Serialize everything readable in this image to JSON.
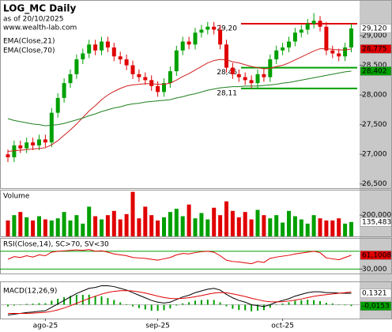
{
  "chart_data": [
    {
      "type": "candlestick",
      "title": "LOG_MC Daily",
      "subtitle": "as of 20/10/2025",
      "source": "www.wealth-lab.com",
      "categories": [
        null,
        null,
        null,
        null,
        null,
        null,
        "ago-25",
        null,
        null,
        null,
        null,
        null,
        null,
        null,
        null,
        null,
        null,
        null,
        null,
        null,
        null,
        null,
        null,
        null,
        "sep-25",
        null,
        null,
        null,
        null,
        null,
        null,
        null,
        null,
        null,
        null,
        null,
        null,
        null,
        null,
        null,
        null,
        null,
        null,
        null,
        "oct-25",
        null,
        null,
        null,
        null,
        null,
        null,
        null,
        null,
        null,
        null,
        null
      ],
      "open": [
        27.0,
        26.95,
        27.15,
        27.1,
        27.2,
        27.15,
        27.25,
        27.2,
        27.7,
        27.95,
        28.2,
        28.35,
        28.6,
        28.7,
        28.85,
        28.75,
        28.9,
        28.8,
        28.65,
        28.6,
        28.5,
        28.35,
        28.3,
        28.25,
        28.15,
        28.05,
        28.2,
        28.4,
        28.75,
        28.9,
        28.85,
        29.05,
        29.1,
        29.15,
        29.1,
        28.85,
        28.46,
        28.35,
        28.3,
        28.25,
        28.2,
        28.35,
        28.3,
        28.6,
        28.75,
        28.8,
        28.9,
        29.05,
        29.1,
        29.2,
        29.25,
        29.15,
        28.75,
        28.7,
        28.65,
        28.8
      ],
      "high": [
        27.08,
        27.23,
        27.23,
        27.28,
        27.28,
        27.33,
        27.33,
        27.78,
        28.03,
        28.28,
        28.43,
        28.68,
        28.78,
        28.93,
        28.93,
        28.98,
        28.98,
        28.88,
        28.73,
        28.68,
        28.58,
        28.43,
        28.38,
        28.33,
        28.23,
        28.28,
        28.48,
        28.83,
        28.98,
        28.98,
        29.13,
        29.18,
        29.23,
        29.23,
        29.18,
        28.93,
        28.54,
        28.43,
        28.38,
        28.33,
        28.43,
        28.43,
        28.68,
        28.83,
        28.88,
        28.98,
        29.13,
        29.18,
        29.28,
        29.38,
        29.33,
        29.23,
        28.83,
        28.78,
        28.88,
        29.2
      ],
      "low": [
        26.87,
        26.87,
        27.02,
        27.02,
        27.07,
        27.07,
        27.12,
        27.12,
        27.62,
        27.87,
        28.12,
        28.27,
        28.52,
        28.62,
        28.67,
        28.67,
        28.72,
        28.57,
        28.52,
        28.42,
        28.27,
        28.22,
        28.17,
        28.07,
        27.97,
        27.97,
        28.12,
        28.32,
        28.67,
        28.77,
        28.77,
        28.97,
        29.02,
        29.02,
        28.77,
        28.38,
        28.27,
        28.22,
        28.17,
        28.11,
        28.12,
        28.22,
        28.22,
        28.52,
        28.67,
        28.72,
        28.82,
        28.97,
        29.02,
        29.12,
        29.07,
        28.67,
        28.62,
        28.57,
        28.57,
        28.72
      ],
      "close": [
        26.95,
        27.15,
        27.1,
        27.2,
        27.15,
        27.25,
        27.2,
        27.7,
        27.95,
        28.2,
        28.35,
        28.6,
        28.7,
        28.85,
        28.75,
        28.9,
        28.8,
        28.65,
        28.6,
        28.5,
        28.35,
        28.3,
        28.25,
        28.15,
        28.05,
        28.2,
        28.4,
        28.75,
        28.9,
        28.85,
        29.05,
        29.1,
        29.15,
        29.1,
        28.85,
        28.46,
        28.35,
        28.3,
        28.25,
        28.2,
        28.35,
        28.3,
        28.6,
        28.75,
        28.8,
        28.9,
        29.05,
        29.1,
        29.2,
        29.25,
        29.15,
        28.75,
        28.7,
        28.65,
        28.8,
        29.12
      ],
      "up_color": "#00a000",
      "down_color": "#e00000",
      "ylim": [
        26.43,
        29.6
      ],
      "yticks": [
        {
          "value": 29,
          "label": "29,000"
        },
        {
          "value": 28.5,
          "label": "28,500"
        },
        {
          "value": 28,
          "label": "28,000"
        },
        {
          "value": 27.5,
          "label": "27,500"
        },
        {
          "value": 27,
          "label": "27,000"
        },
        {
          "value": 26.5,
          "label": "26,500"
        }
      ],
      "series": [
        {
          "name": "EMA(Close,21)",
          "color": "#d02020",
          "values": [
            27.05,
            27.06,
            27.07,
            27.08,
            27.09,
            27.1,
            27.11,
            27.16,
            27.23,
            27.32,
            27.41,
            27.51,
            27.62,
            27.73,
            27.82,
            27.92,
            28.0,
            28.06,
            28.11,
            28.15,
            28.17,
            28.18,
            28.19,
            28.19,
            28.18,
            28.18,
            28.2,
            28.25,
            28.31,
            28.36,
            28.42,
            28.48,
            28.54,
            28.58,
            28.6,
            28.59,
            28.56,
            28.54,
            28.51,
            28.48,
            28.46,
            28.44,
            28.45,
            28.48,
            28.5,
            28.54,
            28.59,
            28.64,
            28.69,
            28.74,
            28.78,
            28.78,
            28.77,
            28.76,
            28.76,
            28.775
          ]
        },
        {
          "name": "EMA(Close,70)",
          "color": "#208020",
          "values": [
            27.6,
            27.57,
            27.55,
            27.53,
            27.51,
            27.5,
            27.48,
            27.49,
            27.5,
            27.52,
            27.55,
            27.58,
            27.61,
            27.65,
            27.68,
            27.72,
            27.75,
            27.78,
            27.8,
            27.83,
            27.85,
            27.86,
            27.88,
            27.89,
            27.9,
            27.91,
            27.92,
            27.95,
            27.97,
            28.0,
            28.02,
            28.05,
            28.08,
            28.1,
            28.12,
            28.13,
            28.14,
            28.14,
            28.15,
            28.15,
            28.15,
            28.16,
            28.17,
            28.18,
            28.2,
            28.21,
            28.23,
            28.25,
            28.27,
            28.29,
            28.31,
            28.33,
            28.35,
            28.37,
            28.39,
            28.402
          ]
        }
      ],
      "levels": [
        {
          "value": 29.2,
          "label": "29,20",
          "color": "#e00000"
        },
        {
          "value": 28.46,
          "label": "28,46",
          "color": "#00a000"
        },
        {
          "value": 28.11,
          "label": "28,11",
          "color": "#00a000"
        }
      ],
      "last_labels": [
        {
          "value": 29.12,
          "label": "29,120",
          "color": "#ffffff",
          "text_color": "#000000"
        },
        {
          "value": 28.775,
          "label": "28,775",
          "color": "#e00000",
          "text_color": "#ffffff"
        },
        {
          "value": 28.402,
          "label": "28,402",
          "color": "#00a000",
          "text_color": "#ffffff"
        }
      ]
    },
    {
      "type": "bar",
      "title": "Volume",
      "values": [
        150000,
        200000,
        230000,
        180000,
        150000,
        190000,
        160000,
        150000,
        170000,
        230000,
        150000,
        200000,
        120000,
        280000,
        190000,
        160000,
        200000,
        240000,
        160000,
        210000,
        420000,
        170000,
        280000,
        200000,
        150000,
        180000,
        230000,
        260000,
        190000,
        300000,
        170000,
        220000,
        160000,
        270000,
        200000,
        330000,
        240000,
        180000,
        230000,
        160000,
        250000,
        200000,
        170000,
        200000,
        130000,
        240000,
        190000,
        160000,
        120000,
        200000,
        170000,
        150000,
        150000,
        170000,
        120000,
        135483
      ],
      "ylim": [
        0,
        440000
      ],
      "yticks": [
        {
          "value": 200000,
          "label": "200,000"
        }
      ],
      "last_labels": [
        {
          "value": 135483,
          "label": "135,483",
          "color": "#ffffff",
          "text_color": "#000000"
        }
      ]
    },
    {
      "type": "line",
      "title": "RSI(Close,14), SC>70, SV<30",
      "series": [
        {
          "color": "#e00000",
          "values": [
            52,
            58,
            56,
            60,
            57,
            62,
            60,
            68,
            70,
            71,
            72,
            73,
            72,
            74,
            70,
            71,
            68,
            64,
            62,
            60,
            56,
            55,
            54,
            52,
            50,
            53,
            56,
            62,
            65,
            64,
            67,
            69,
            70,
            68,
            60,
            50,
            47,
            46,
            44,
            42,
            47,
            45,
            54,
            57,
            59,
            61,
            64,
            66,
            68,
            70,
            67,
            55,
            53,
            51,
            56,
            61.1008
          ]
        }
      ],
      "ylim": [
        20,
        100
      ],
      "levels": [
        70,
        30
      ],
      "level_color": "#00a000",
      "yticks": [
        {
          "value": 30,
          "label": "30,000"
        }
      ],
      "last_labels": [
        {
          "value": 61.1008,
          "label": "61,1008",
          "color": "#e00000",
          "text_color": "#ffffff"
        }
      ]
    },
    {
      "type": "macd",
      "title": "MACD(12,26,9)",
      "series": [
        {
          "color": "#000000",
          "values": [
            -0.12,
            -0.11,
            -0.1,
            -0.09,
            -0.085,
            -0.075,
            -0.07,
            -0.03,
            0.01,
            0.05,
            0.09,
            0.13,
            0.16,
            0.19,
            0.2,
            0.22,
            0.22,
            0.21,
            0.19,
            0.17,
            0.14,
            0.11,
            0.08,
            0.05,
            0.03,
            0.02,
            0.03,
            0.06,
            0.09,
            0.11,
            0.14,
            0.16,
            0.18,
            0.19,
            0.17,
            0.12,
            0.08,
            0.05,
            0.03,
            0.0,
            -0.01,
            -0.02,
            0.0,
            0.03,
            0.05,
            0.07,
            0.1,
            0.12,
            0.14,
            0.15,
            0.15,
            0.14,
            0.14,
            0.135,
            0.133,
            0.1321
          ]
        },
        {
          "color": "#e00000",
          "values": [
            -0.1,
            -0.1,
            -0.1,
            -0.1,
            -0.097,
            -0.093,
            -0.088,
            -0.076,
            -0.059,
            -0.037,
            -0.012,
            0.016,
            0.045,
            0.074,
            0.099,
            0.123,
            0.142,
            0.155,
            0.162,
            0.164,
            0.159,
            0.149,
            0.135,
            0.118,
            0.1,
            0.084,
            0.073,
            0.07,
            0.074,
            0.081,
            0.093,
            0.106,
            0.121,
            0.135,
            0.142,
            0.138,
            0.126,
            0.111,
            0.095,
            0.076,
            0.059,
            0.043,
            0.034,
            0.033,
            0.036,
            0.043,
            0.054,
            0.067,
            0.082,
            0.097,
            0.109,
            0.117,
            0.125,
            0.133,
            0.14,
            0.1474
          ]
        }
      ],
      "histogram": {
        "color": "#00a000",
        "values": [
          -0.02,
          -0.01,
          0,
          0.01,
          0.012,
          0.018,
          0.018,
          0.046,
          0.069,
          0.087,
          0.102,
          0.114,
          0.115,
          0.116,
          0.101,
          0.097,
          0.078,
          0.055,
          0.028,
          0.006,
          -0.019,
          -0.039,
          -0.055,
          -0.068,
          -0.07,
          -0.064,
          -0.043,
          -0.01,
          0.016,
          0.029,
          0.047,
          0.054,
          0.059,
          0.055,
          0.028,
          -0.018,
          -0.046,
          -0.061,
          -0.065,
          -0.076,
          -0.069,
          -0.063,
          -0.034,
          -0.003,
          0.014,
          0.027,
          0.046,
          0.053,
          0.058,
          0.053,
          0.041,
          0.023,
          0.015,
          0.002,
          -0.007,
          -0.0153
        ]
      },
      "ylim": [
        -0.16,
        0.27
      ],
      "last_labels": [
        {
          "value": 0.1321,
          "label": "0,1321",
          "color": "#ffffff",
          "text_color": "#000000"
        },
        {
          "value": -0.0153,
          "label": "-0,0153",
          "color": "#00a000",
          "text_color": "#000000"
        }
      ]
    }
  ]
}
